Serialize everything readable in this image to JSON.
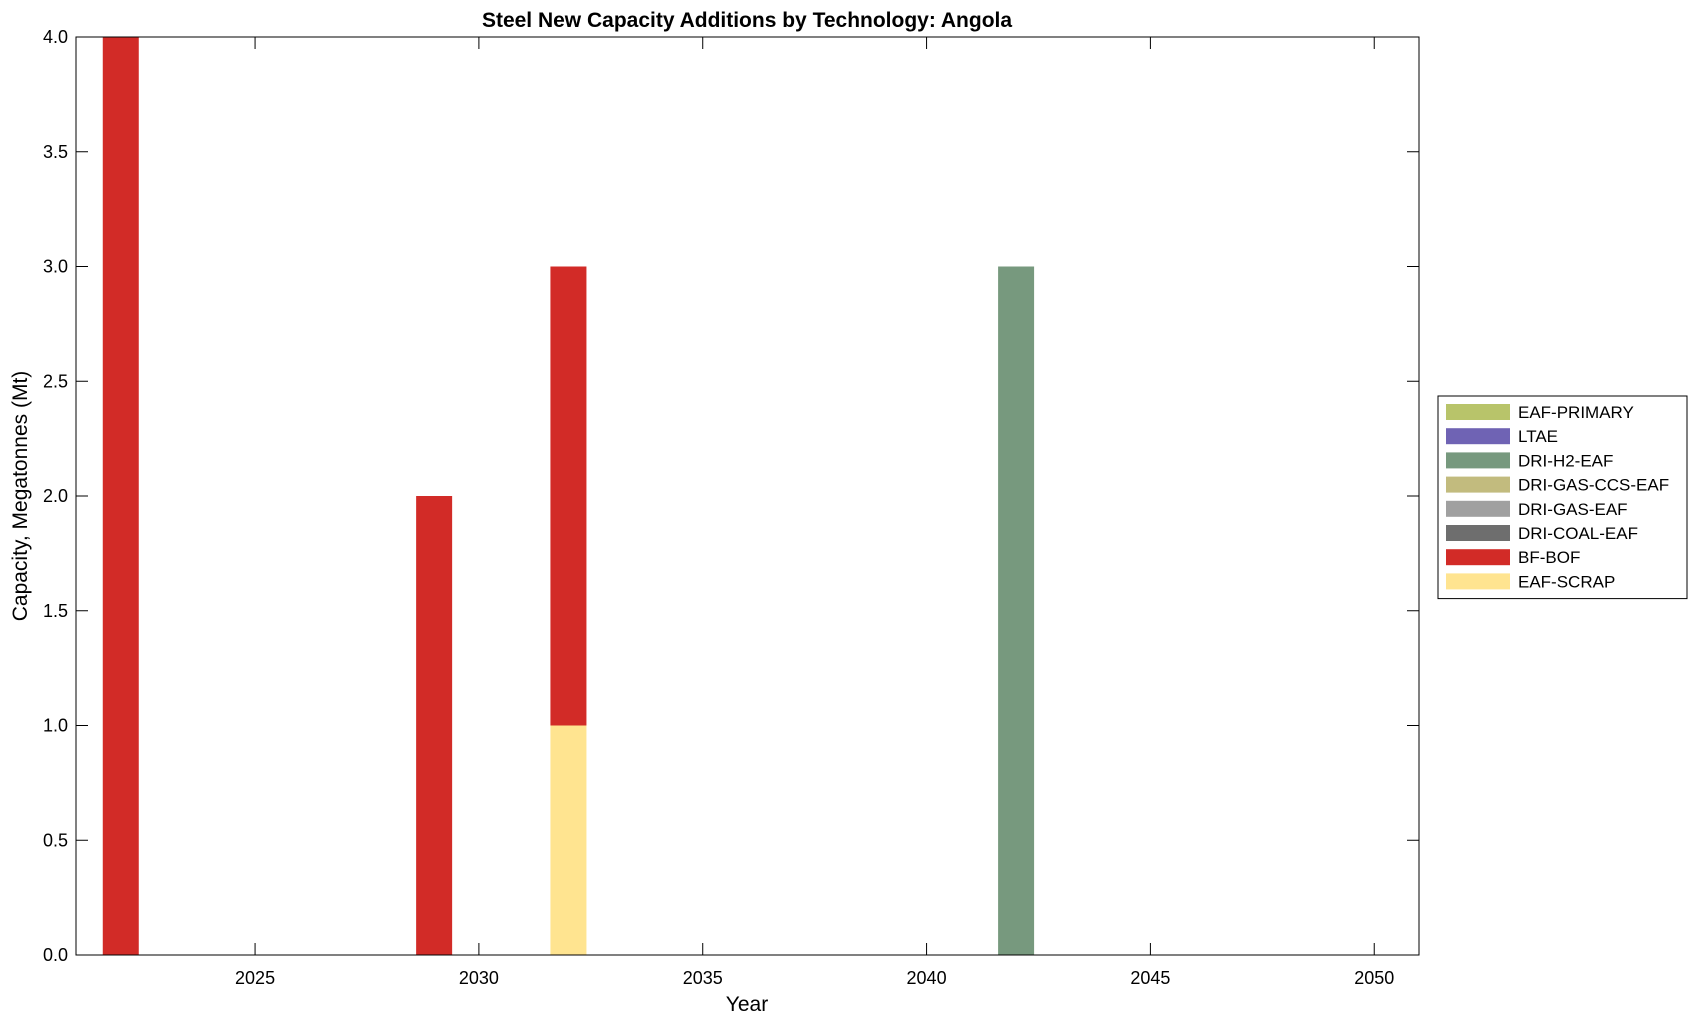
{
  "chart_data": {
    "type": "bar",
    "stacked": true,
    "title": "Steel New Capacity Additions by Technology: Angola",
    "xlabel": "Year",
    "ylabel": "Capacity, Megatonnes (Mt)",
    "xlim": [
      2021,
      2051
    ],
    "ylim": [
      0,
      4.0
    ],
    "xticks": [
      "2025",
      "2030",
      "2035",
      "2040",
      "2045",
      "2050"
    ],
    "yticks": [
      "0.0",
      "0.5",
      "1.0",
      "1.5",
      "2.0",
      "2.5",
      "3.0",
      "3.5",
      "4.0"
    ],
    "grid": false,
    "legend_position": "right",
    "x": [
      2022,
      2029,
      2032,
      2042
    ],
    "series": [
      {
        "name": "EAF-SCRAP",
        "color": "#FFE490",
        "values": [
          0,
          0,
          1,
          0
        ]
      },
      {
        "name": "BF-BOF",
        "color": "#D22B27",
        "values": [
          4,
          2,
          2,
          0
        ]
      },
      {
        "name": "DRI-COAL-EAF",
        "color": "#6E6E6E",
        "values": [
          0,
          0,
          0,
          0
        ]
      },
      {
        "name": "DRI-GAS-EAF",
        "color": "#A0A0A0",
        "values": [
          0,
          0,
          0,
          0
        ]
      },
      {
        "name": "DRI-GAS-CCS-EAF",
        "color": "#C2BB7E",
        "values": [
          0,
          0,
          0,
          0
        ]
      },
      {
        "name": "DRI-H2-EAF",
        "color": "#77997E",
        "values": [
          0,
          0,
          0,
          3
        ]
      },
      {
        "name": "LTAE",
        "color": "#6F63B4",
        "values": [
          0,
          0,
          0,
          0
        ]
      },
      {
        "name": "EAF-PRIMARY",
        "color": "#B8C46A",
        "values": [
          0,
          0,
          0,
          0
        ]
      }
    ]
  }
}
